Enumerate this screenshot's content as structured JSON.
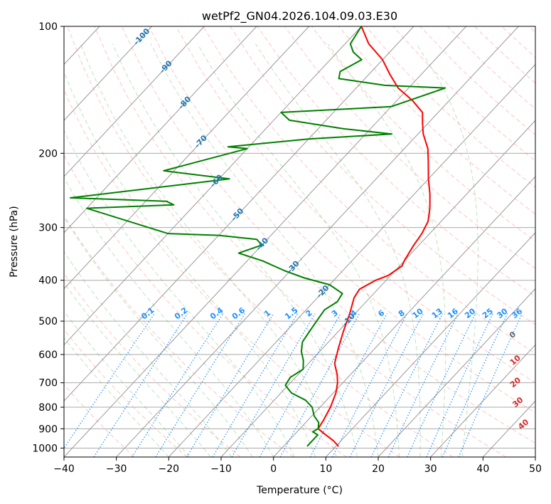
{
  "title": "wetPf2_GN04.2026.104.09.03.E30",
  "chart_data": {
    "type": "line",
    "title": "wetPf2_GN04.2026.104.09.03.E30",
    "xlabel": "Temperature (°C)",
    "ylabel": "Pressure (hPa)",
    "xlim": [
      -40,
      50
    ],
    "ylim": [
      1050,
      100
    ],
    "y_scale": "log",
    "grid": true,
    "x_ticks": [
      -40,
      -30,
      -20,
      -10,
      0,
      10,
      20,
      30,
      40,
      50
    ],
    "x_tick_labels": [
      "−40",
      "−30",
      "−20",
      "−10",
      "0",
      "10",
      "20",
      "30",
      "40",
      "50"
    ],
    "y_ticks": [
      1000,
      900,
      800,
      700,
      600,
      500,
      400,
      300,
      200,
      100
    ],
    "y_tick_labels": [
      "1000",
      "900",
      "800",
      "700",
      "600",
      "500",
      "400",
      "300",
      "200",
      "100"
    ],
    "colors": {
      "temperature": "#ff0000",
      "dewpoint": "#008000",
      "isotherm": "#999999",
      "dry_adiabat": "#fa8072",
      "moist_adiabat": "#2ca02c",
      "mixing_ratio": "#1e90ff",
      "grid": "#aaaaaa"
    },
    "series": [
      {
        "key": "temperature",
        "points": [
          [
            10.5,
            990
          ],
          [
            8.5,
            960
          ],
          [
            6.0,
            930
          ],
          [
            3.5,
            900
          ],
          [
            3.0,
            860
          ],
          [
            2.0,
            800
          ],
          [
            0.5,
            740
          ],
          [
            -1.0,
            700
          ],
          [
            -2.5,
            670
          ],
          [
            -5.0,
            630
          ],
          [
            -7.0,
            580
          ],
          [
            -9.0,
            530
          ],
          [
            -11.0,
            480
          ],
          [
            -13.0,
            440
          ],
          [
            -13.5,
            420
          ],
          [
            -12.0,
            400
          ],
          [
            -10.5,
            390
          ],
          [
            -10.0,
            380
          ],
          [
            -9.5,
            370
          ],
          [
            -10.0,
            360
          ],
          [
            -10.5,
            345
          ],
          [
            -11.0,
            330
          ],
          [
            -11.5,
            310
          ],
          [
            -12.5,
            290
          ],
          [
            -14.5,
            270
          ],
          [
            -17.0,
            250
          ],
          [
            -20.0,
            230
          ],
          [
            -23.0,
            210
          ],
          [
            -25.5,
            195
          ],
          [
            -29.0,
            180
          ],
          [
            -31.0,
            170
          ],
          [
            -33.0,
            160
          ],
          [
            -37.0,
            150
          ],
          [
            -42.0,
            140
          ],
          [
            -46.0,
            130
          ],
          [
            -50.0,
            120
          ],
          [
            -55.5,
            110
          ],
          [
            -60.0,
            100
          ]
        ]
      },
      {
        "key": "dewpoint",
        "points": [
          [
            4.5,
            990
          ],
          [
            4.5,
            960
          ],
          [
            4.5,
            930
          ],
          [
            3.0,
            915
          ],
          [
            3.5,
            900
          ],
          [
            2.5,
            870
          ],
          [
            0.5,
            840
          ],
          [
            -0.5,
            820
          ],
          [
            -1.5,
            800
          ],
          [
            -4.0,
            770
          ],
          [
            -8.0,
            740
          ],
          [
            -10.5,
            710
          ],
          [
            -11.0,
            680
          ],
          [
            -10.0,
            650
          ],
          [
            -11.5,
            620
          ],
          [
            -13.5,
            590
          ],
          [
            -15.0,
            560
          ],
          [
            -15.5,
            530
          ],
          [
            -16.0,
            500
          ],
          [
            -16.5,
            470
          ],
          [
            -15.5,
            450
          ],
          [
            -16.0,
            430
          ],
          [
            -20.0,
            410
          ],
          [
            -26.0,
            395
          ],
          [
            -31.0,
            380
          ],
          [
            -37.0,
            360
          ],
          [
            -43.0,
            345
          ],
          [
            -40.0,
            330
          ],
          [
            -42.0,
            320
          ],
          [
            -50.0,
            313
          ],
          [
            -60.0,
            310
          ],
          [
            -80.0,
            270
          ],
          [
            -64.0,
            265
          ],
          [
            -66.0,
            260
          ],
          [
            -85.0,
            255
          ],
          [
            -58.0,
            230
          ],
          [
            -72.0,
            220
          ],
          [
            -60.0,
            195
          ],
          [
            -64.0,
            193
          ],
          [
            -50.0,
            185
          ],
          [
            -35.0,
            180
          ],
          [
            -45.0,
            175
          ],
          [
            -57.0,
            167
          ],
          [
            -60.0,
            160
          ],
          [
            -40.0,
            155
          ],
          [
            -33.0,
            140
          ],
          [
            -45.0,
            138
          ],
          [
            -55.0,
            133
          ],
          [
            -56.0,
            128
          ],
          [
            -54.0,
            120
          ],
          [
            -57.0,
            115
          ],
          [
            -59.0,
            110
          ],
          [
            -60.0,
            100
          ]
        ]
      }
    ],
    "isotherm_labels": [
      "-100",
      "-90",
      "-80",
      "-70",
      "-60",
      "-50",
      "-40",
      "-30",
      "-20",
      "-10"
    ],
    "mixing_ratio_labels": [
      "0.1",
      "0.2",
      "0.4",
      "0.6",
      "1",
      "1.5",
      "2",
      "3",
      "4",
      "6",
      "8",
      "10",
      "13",
      "16",
      "20",
      "25",
      "30",
      "36"
    ],
    "moist_adiabat_labels": [
      "0",
      "10",
      "20",
      "30",
      "40"
    ]
  }
}
